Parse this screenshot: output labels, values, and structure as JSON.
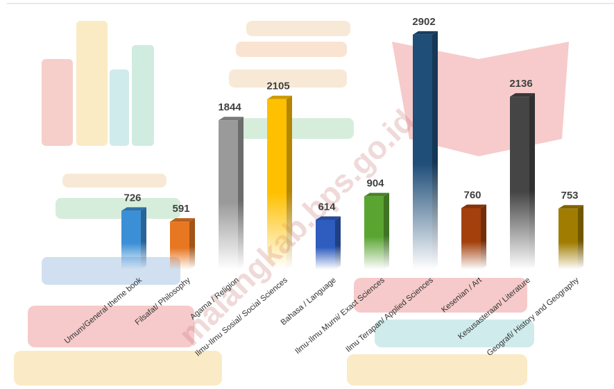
{
  "chart_data": {
    "type": "bar",
    "categories": [
      "Umum/General theme book",
      "Filsafat/ Philosophy",
      "Agama / Religion",
      "Ilmu-Ilmu Sosial/ Social Sciences",
      "Bahasa / Language",
      "Ilmu-Ilmu Murni/ Exact Sciences",
      "Ilmu Terapan/ Applied Sciences",
      "Kesenian / Art",
      "Kesusasteraan/ Literature",
      "Geografi/ History and Geography"
    ],
    "values": [
      726,
      591,
      1844,
      2105,
      614,
      904,
      2902,
      760,
      2136,
      753
    ],
    "colors": [
      "#3b8fd6",
      "#e87722",
      "#9a9a9a",
      "#ffc000",
      "#2e5cbf",
      "#5aa532",
      "#1f4e79",
      "#a4400c",
      "#454545",
      "#a07c00"
    ],
    "ylim": [
      0,
      3000
    ],
    "watermark": "malangkab.bps.go.id"
  }
}
